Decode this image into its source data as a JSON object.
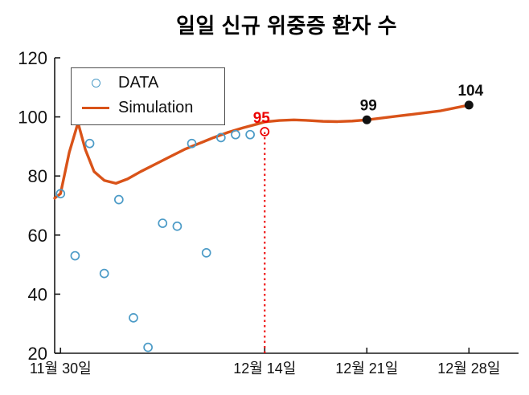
{
  "chart_data": {
    "type": "line+scatter",
    "title": "일일 신규 위중증 환자 수",
    "xlabel": "",
    "ylabel": "",
    "x_unit": "days since 11월 30일",
    "x_range": [
      -0.4,
      31.4
    ],
    "ylim": [
      20,
      120
    ],
    "yticks": [
      20,
      40,
      60,
      80,
      100,
      120
    ],
    "xticks": [
      {
        "day": 0,
        "label": "11월 30일"
      },
      {
        "day": 14,
        "label": "12월 14일"
      },
      {
        "day": 21,
        "label": "12월 21일"
      },
      {
        "day": 28,
        "label": "12월 28일"
      }
    ],
    "legend": [
      {
        "label": "DATA",
        "marker": "circle",
        "color": "#4C9BC7"
      },
      {
        "label": "Simulation",
        "marker": "line",
        "color": "#D95319"
      }
    ],
    "series": [
      {
        "name": "DATA",
        "type": "scatter",
        "color": "#4C9BC7",
        "points": [
          [
            0,
            74
          ],
          [
            1,
            53
          ],
          [
            2,
            91
          ],
          [
            3,
            47
          ],
          [
            4,
            72
          ],
          [
            5,
            32
          ],
          [
            6,
            22
          ],
          [
            7,
            64
          ],
          [
            8,
            63
          ],
          [
            9,
            91
          ],
          [
            10,
            54
          ],
          [
            11,
            93
          ],
          [
            12,
            94
          ],
          [
            13,
            94
          ]
        ]
      },
      {
        "name": "Simulation",
        "type": "line",
        "color": "#D95319",
        "points": [
          [
            -0.4,
            72.5
          ],
          [
            0,
            74
          ],
          [
            0.6,
            88
          ],
          [
            1.2,
            98
          ],
          [
            1.7,
            89
          ],
          [
            2.3,
            81.5
          ],
          [
            3,
            78.5
          ],
          [
            3.8,
            77.5
          ],
          [
            4.6,
            79
          ],
          [
            5.5,
            81.5
          ],
          [
            6.5,
            84
          ],
          [
            7.5,
            86.5
          ],
          [
            8.5,
            89
          ],
          [
            9.5,
            91
          ],
          [
            10.5,
            93
          ],
          [
            11.5,
            94.8
          ],
          [
            12.5,
            96.3
          ],
          [
            13.5,
            97.6
          ],
          [
            14,
            98.3
          ],
          [
            15,
            98.8
          ],
          [
            16,
            99
          ],
          [
            17,
            98.8
          ],
          [
            18,
            98.5
          ],
          [
            19,
            98.4
          ],
          [
            20,
            98.6
          ],
          [
            21,
            99
          ],
          [
            22,
            99.6
          ],
          [
            23,
            100.2
          ],
          [
            24,
            100.8
          ],
          [
            25,
            101.4
          ],
          [
            26,
            102
          ],
          [
            27,
            103
          ],
          [
            28,
            104
          ]
        ]
      }
    ],
    "annotations": {
      "highlight_point": {
        "day": 14,
        "value": 95,
        "label": "95",
        "color": "#EC0000"
      },
      "vline": {
        "day": 14,
        "y_from": 20,
        "y_to": 95,
        "style": "dotted",
        "color": "#EC0000"
      },
      "marked_points": [
        {
          "day": 21,
          "value": 99,
          "label": "99"
        },
        {
          "day": 28,
          "value": 104,
          "label": "104"
        }
      ]
    }
  }
}
